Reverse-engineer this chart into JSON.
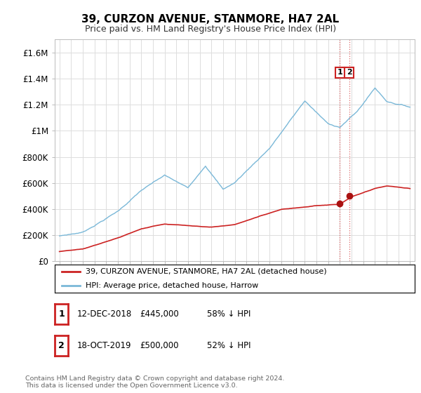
{
  "title": "39, CURZON AVENUE, STANMORE, HA7 2AL",
  "subtitle": "Price paid vs. HM Land Registry's House Price Index (HPI)",
  "ylim": [
    0,
    1700000
  ],
  "yticks": [
    0,
    200000,
    400000,
    600000,
    800000,
    1000000,
    1200000,
    1400000,
    1600000
  ],
  "ytick_labels": [
    "£0",
    "£200K",
    "£400K",
    "£600K",
    "£800K",
    "£1M",
    "£1.2M",
    "£1.4M",
    "£1.6M"
  ],
  "hpi_color": "#7ab8d8",
  "price_color": "#cc2222",
  "marker_color": "#aa1111",
  "dashed_line_color": "#dd6666",
  "background_color": "#ffffff",
  "grid_color": "#dddddd",
  "legend_entries": [
    "39, CURZON AVENUE, STANMORE, HA7 2AL (detached house)",
    "HPI: Average price, detached house, Harrow"
  ],
  "sale1_label": "1",
  "sale1_date": "12-DEC-2018",
  "sale1_price": "£445,000",
  "sale1_hpi": "58% ↓ HPI",
  "sale2_label": "2",
  "sale2_date": "18-OCT-2019",
  "sale2_price": "£500,000",
  "sale2_hpi": "52% ↓ HPI",
  "footnote": "Contains HM Land Registry data © Crown copyright and database right 2024.\nThis data is licensed under the Open Government Licence v3.0.",
  "sale1_year": 2019.0,
  "sale2_year": 2019.8,
  "sale1_price_val": 445000,
  "sale2_price_val": 500000,
  "xlim_left": 1994.6,
  "xlim_right": 2025.4
}
